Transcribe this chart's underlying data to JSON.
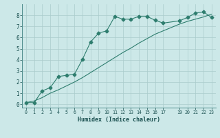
{
  "line1_x": [
    0,
    1,
    2,
    3,
    4,
    5,
    6,
    7,
    8,
    9,
    10,
    11,
    12,
    13,
    14,
    15,
    16,
    17,
    19,
    20,
    21,
    22,
    23
  ],
  "line1_y": [
    0.15,
    0.15,
    1.2,
    1.5,
    2.5,
    2.6,
    2.7,
    4.05,
    5.6,
    6.4,
    6.6,
    7.9,
    7.65,
    7.65,
    7.9,
    7.9,
    7.55,
    7.3,
    7.5,
    7.8,
    8.2,
    8.3,
    7.8
  ],
  "line2_x": [
    0,
    1,
    2,
    3,
    4,
    5,
    6,
    7,
    8,
    9,
    10,
    11,
    12,
    13,
    14,
    15,
    16,
    17,
    19,
    20,
    21,
    22,
    23
  ],
  "line2_y": [
    0.15,
    0.3,
    0.6,
    1.0,
    1.3,
    1.65,
    2.0,
    2.4,
    2.85,
    3.3,
    3.75,
    4.2,
    4.65,
    5.05,
    5.5,
    5.9,
    6.3,
    6.6,
    7.2,
    7.45,
    7.65,
    7.85,
    8.1
  ],
  "line_color": "#2e7d6e",
  "bg_color": "#cce8e8",
  "grid_color": "#aacccc",
  "xlabel": "Humidex (Indice chaleur)",
  "ylim": [
    -0.3,
    9.0
  ],
  "xlim": [
    -0.5,
    23.5
  ],
  "yticks": [
    0,
    1,
    2,
    3,
    4,
    5,
    6,
    7,
    8
  ],
  "xticks": [
    0,
    1,
    2,
    3,
    4,
    5,
    6,
    7,
    8,
    9,
    10,
    11,
    12,
    13,
    14,
    15,
    16,
    17,
    19,
    20,
    21,
    22,
    23
  ],
  "xtick_labels": [
    "0",
    "1",
    "2",
    "3",
    "4",
    "5",
    "6",
    "7",
    "8",
    "9",
    "10",
    "11",
    "12",
    "13",
    "14",
    "15",
    "16",
    "17",
    "19",
    "20",
    "21",
    "22",
    "23"
  ],
  "marker": "D",
  "marker_size": 2.5
}
